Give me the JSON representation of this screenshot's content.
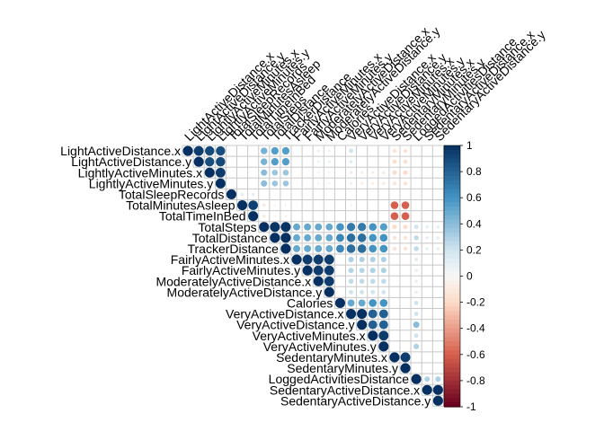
{
  "chart_data": {
    "type": "heatmap",
    "subtype": "correlation-matrix-upper-circles",
    "variables": [
      "LightActiveDistance.x",
      "LightActiveDistance.y",
      "LightlyActiveMinutes.x",
      "LightlyActiveMinutes.y",
      "TotalSleepRecords",
      "TotalMinutesAsleep",
      "TotalTimeInBed",
      "TotalSteps",
      "TotalDistance",
      "TrackerDistance",
      "FairlyActiveMinutes.x",
      "FairlyActiveMinutes.y",
      "ModeratelyActiveDistance.x",
      "ModeratelyActiveDistance.y",
      "Calories",
      "VeryActiveDistance.x",
      "VeryActiveDistance.y",
      "VeryActiveMinutes.x",
      "VeryActiveMinutes.y",
      "SedentaryMinutes.x",
      "SedentaryMinutes.y",
      "LoggedActivitiesDistance",
      "SedentaryActiveDistance.x",
      "SedentaryActiveDistance.y"
    ],
    "cells": [
      [
        0,
        0,
        1
      ],
      [
        0,
        1,
        0.95
      ],
      [
        0,
        2,
        0.9
      ],
      [
        0,
        3,
        0.88
      ],
      [
        0,
        7,
        0.45
      ],
      [
        0,
        8,
        0.55
      ],
      [
        0,
        9,
        0.55
      ],
      [
        0,
        12,
        0.08
      ],
      [
        0,
        13,
        0.07
      ],
      [
        0,
        15,
        0.2
      ],
      [
        0,
        19,
        -0.15
      ],
      [
        0,
        20,
        -0.15
      ],
      [
        1,
        1,
        1
      ],
      [
        1,
        2,
        0.88
      ],
      [
        1,
        3,
        0.9
      ],
      [
        1,
        7,
        0.45
      ],
      [
        1,
        8,
        0.55
      ],
      [
        1,
        9,
        0.55
      ],
      [
        1,
        12,
        0.07
      ],
      [
        1,
        13,
        0.08
      ],
      [
        1,
        15,
        0.12
      ],
      [
        1,
        19,
        -0.18
      ],
      [
        1,
        20,
        -0.18
      ],
      [
        2,
        2,
        1
      ],
      [
        2,
        3,
        0.95
      ],
      [
        2,
        7,
        0.4
      ],
      [
        2,
        8,
        0.35
      ],
      [
        2,
        9,
        0.35
      ],
      [
        2,
        12,
        0.05
      ],
      [
        2,
        13,
        0.05
      ],
      [
        2,
        15,
        -0.1
      ],
      [
        2,
        16,
        -0.08
      ],
      [
        2,
        17,
        -0.08
      ],
      [
        2,
        18,
        -0.1
      ],
      [
        2,
        19,
        -0.2
      ],
      [
        2,
        20,
        -0.2
      ],
      [
        3,
        3,
        1
      ],
      [
        3,
        7,
        0.4
      ],
      [
        3,
        8,
        0.35
      ],
      [
        3,
        9,
        0.35
      ],
      [
        3,
        12,
        0.05
      ],
      [
        3,
        13,
        0.05
      ],
      [
        3,
        15,
        -0.08
      ],
      [
        3,
        16,
        -0.08
      ],
      [
        3,
        17,
        -0.08
      ],
      [
        3,
        18,
        -0.1
      ],
      [
        3,
        19,
        -0.15
      ],
      [
        3,
        20,
        -0.15
      ],
      [
        4,
        4,
        1
      ],
      [
        4,
        5,
        0.1
      ],
      [
        4,
        6,
        0.1
      ],
      [
        5,
        5,
        1
      ],
      [
        5,
        6,
        0.93
      ],
      [
        5,
        7,
        -0.1
      ],
      [
        5,
        8,
        -0.05
      ],
      [
        5,
        9,
        -0.05
      ],
      [
        5,
        15,
        -0.05
      ],
      [
        5,
        19,
        -0.6
      ],
      [
        5,
        20,
        -0.6
      ],
      [
        6,
        6,
        1
      ],
      [
        6,
        7,
        -0.1
      ],
      [
        6,
        8,
        -0.05
      ],
      [
        6,
        9,
        -0.05
      ],
      [
        6,
        19,
        -0.6
      ],
      [
        6,
        20,
        -0.6
      ],
      [
        7,
        7,
        1
      ],
      [
        7,
        8,
        0.98
      ],
      [
        7,
        9,
        0.98
      ],
      [
        7,
        10,
        0.5
      ],
      [
        7,
        11,
        0.5
      ],
      [
        7,
        12,
        0.5
      ],
      [
        7,
        13,
        0.5
      ],
      [
        7,
        14,
        0.6
      ],
      [
        7,
        15,
        0.7
      ],
      [
        7,
        16,
        0.7
      ],
      [
        7,
        17,
        0.6
      ],
      [
        7,
        18,
        0.55
      ],
      [
        7,
        19,
        -0.2
      ],
      [
        7,
        20,
        -0.2
      ],
      [
        7,
        21,
        0.2
      ],
      [
        7,
        22,
        0.1
      ],
      [
        7,
        23,
        0.1
      ],
      [
        8,
        8,
        1
      ],
      [
        8,
        9,
        1
      ],
      [
        8,
        10,
        0.5
      ],
      [
        8,
        11,
        0.5
      ],
      [
        8,
        12,
        0.5
      ],
      [
        8,
        13,
        0.5
      ],
      [
        8,
        14,
        0.65
      ],
      [
        8,
        15,
        0.75
      ],
      [
        8,
        16,
        0.75
      ],
      [
        8,
        17,
        0.6
      ],
      [
        8,
        18,
        0.6
      ],
      [
        8,
        19,
        -0.15
      ],
      [
        8,
        20,
        -0.15
      ],
      [
        8,
        21,
        0.25
      ],
      [
        8,
        22,
        0.1
      ],
      [
        8,
        23,
        0.1
      ],
      [
        9,
        9,
        1
      ],
      [
        9,
        10,
        0.5
      ],
      [
        9,
        11,
        0.5
      ],
      [
        9,
        12,
        0.5
      ],
      [
        9,
        13,
        0.5
      ],
      [
        9,
        14,
        0.65
      ],
      [
        9,
        15,
        0.75
      ],
      [
        9,
        16,
        0.75
      ],
      [
        9,
        17,
        0.6
      ],
      [
        9,
        18,
        0.6
      ],
      [
        9,
        19,
        -0.15
      ],
      [
        9,
        20,
        -0.15
      ],
      [
        9,
        21,
        0.25
      ],
      [
        9,
        22,
        0.1
      ],
      [
        9,
        23,
        0.1
      ],
      [
        10,
        10,
        1
      ],
      [
        10,
        11,
        0.95
      ],
      [
        10,
        12,
        0.95
      ],
      [
        10,
        13,
        0.95
      ],
      [
        10,
        15,
        0.3
      ],
      [
        10,
        16,
        0.3
      ],
      [
        10,
        17,
        0.3
      ],
      [
        10,
        18,
        0.3
      ],
      [
        10,
        21,
        0.12
      ],
      [
        11,
        11,
        1
      ],
      [
        11,
        12,
        0.95
      ],
      [
        11,
        13,
        0.95
      ],
      [
        11,
        15,
        0.28
      ],
      [
        11,
        16,
        0.28
      ],
      [
        11,
        17,
        0.3
      ],
      [
        11,
        18,
        0.3
      ],
      [
        11,
        21,
        0.1
      ],
      [
        12,
        12,
        1
      ],
      [
        12,
        13,
        0.95
      ],
      [
        12,
        15,
        0.25
      ],
      [
        12,
        16,
        0.25
      ],
      [
        12,
        17,
        0.25
      ],
      [
        12,
        18,
        0.25
      ],
      [
        12,
        21,
        0.1
      ],
      [
        13,
        13,
        1
      ],
      [
        13,
        15,
        0.2
      ],
      [
        13,
        16,
        0.2
      ],
      [
        13,
        17,
        0.2
      ],
      [
        13,
        18,
        0.2
      ],
      [
        13,
        21,
        0.1
      ],
      [
        14,
        14,
        1
      ],
      [
        14,
        15,
        0.5
      ],
      [
        14,
        16,
        0.5
      ],
      [
        14,
        17,
        0.6
      ],
      [
        14,
        18,
        0.6
      ],
      [
        14,
        21,
        0.2
      ],
      [
        15,
        15,
        1
      ],
      [
        15,
        16,
        1
      ],
      [
        15,
        17,
        0.8
      ],
      [
        15,
        18,
        0.8
      ],
      [
        15,
        21,
        0.2
      ],
      [
        16,
        16,
        1
      ],
      [
        16,
        17,
        0.8
      ],
      [
        16,
        18,
        0.8
      ],
      [
        16,
        21,
        0.4
      ],
      [
        17,
        17,
        1
      ],
      [
        17,
        18,
        0.95
      ],
      [
        17,
        21,
        0.2
      ],
      [
        18,
        18,
        1
      ],
      [
        18,
        21,
        0.3
      ],
      [
        19,
        19,
        1
      ],
      [
        19,
        20,
        0.95
      ],
      [
        20,
        20,
        1
      ],
      [
        21,
        21,
        1
      ],
      [
        21,
        22,
        0.3
      ],
      [
        21,
        23,
        0.3
      ],
      [
        22,
        22,
        1
      ],
      [
        22,
        23,
        1
      ],
      [
        23,
        23,
        1
      ]
    ],
    "colorbar": {
      "ticks": [
        "1",
        "0.8",
        "0.6",
        "0.4",
        "0.2",
        "0",
        "-0.2",
        "-0.4",
        "-0.6",
        "-0.8",
        "-1"
      ],
      "range": [
        -1,
        1
      ],
      "colors": {
        "neg": "#67001F",
        "mid": "#F7F7F7",
        "pos": "#053061"
      }
    },
    "grid": true,
    "legend_position": "right"
  }
}
